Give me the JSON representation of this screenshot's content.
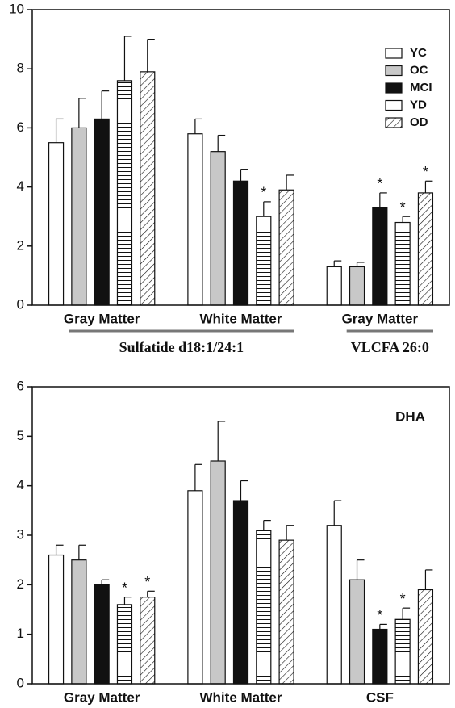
{
  "chart_data": [
    {
      "type": "bar",
      "categories": [
        "Gray Matter",
        "White Matter",
        "Gray Matter"
      ],
      "category_groups": [
        {
          "label": "Sulfatide d18:1/24:1",
          "count": 2
        },
        {
          "label": "VLCFA 26:0",
          "count": 1
        }
      ],
      "significance_mark": "*",
      "series": [
        {
          "name": "YC",
          "color": "#ffffff",
          "pattern": "none",
          "values": [
            5.5,
            5.8,
            1.3
          ],
          "errors": [
            0.8,
            0.5,
            0.2
          ],
          "significant": [
            false,
            false,
            false
          ]
        },
        {
          "name": "OC",
          "color": "#c8c8c8",
          "pattern": "none",
          "values": [
            6.0,
            5.2,
            1.3
          ],
          "errors": [
            1.0,
            0.55,
            0.15
          ],
          "significant": [
            false,
            false,
            false
          ]
        },
        {
          "name": "MCI",
          "color": "#111111",
          "pattern": "none",
          "values": [
            6.3,
            4.2,
            3.3
          ],
          "errors": [
            0.95,
            0.4,
            0.5
          ],
          "significant": [
            false,
            false,
            true
          ]
        },
        {
          "name": "YD",
          "color": "#ffffff",
          "pattern": "horizontal",
          "values": [
            7.6,
            3.0,
            2.8
          ],
          "errors": [
            1.5,
            0.5,
            0.2
          ],
          "significant": [
            false,
            true,
            true
          ]
        },
        {
          "name": "OD",
          "color": "#ffffff",
          "pattern": "diagonal",
          "values": [
            7.9,
            3.9,
            3.8
          ],
          "errors": [
            1.1,
            0.5,
            0.4
          ],
          "significant": [
            false,
            false,
            true
          ]
        }
      ],
      "ylim": [
        0,
        10
      ],
      "yticks": [
        0,
        2,
        4,
        6,
        8,
        10
      ],
      "legend": "upper right"
    },
    {
      "type": "bar",
      "annotation": "DHA",
      "categories": [
        "Gray Matter",
        "White Matter",
        "CSF"
      ],
      "significance_mark": "*",
      "series": [
        {
          "color": "#ffffff",
          "pattern": "none",
          "values": [
            2.6,
            3.9,
            3.2
          ],
          "errors": [
            0.2,
            0.53,
            0.5
          ],
          "significant": [
            false,
            false,
            false
          ]
        },
        {
          "color": "#c8c8c8",
          "pattern": "none",
          "values": [
            2.5,
            4.5,
            2.1
          ],
          "errors": [
            0.3,
            0.8,
            0.4
          ],
          "significant": [
            false,
            false,
            false
          ]
        },
        {
          "color": "#111111",
          "pattern": "none",
          "values": [
            2.0,
            3.7,
            1.1
          ],
          "errors": [
            0.1,
            0.4,
            0.1
          ],
          "significant": [
            false,
            false,
            true
          ]
        },
        {
          "color": "#ffffff",
          "pattern": "horizontal",
          "values": [
            1.6,
            3.1,
            1.3
          ],
          "errors": [
            0.15,
            0.2,
            0.23
          ],
          "significant": [
            true,
            false,
            true
          ]
        },
        {
          "color": "#ffffff",
          "pattern": "diagonal",
          "values": [
            1.75,
            2.9,
            1.9
          ],
          "errors": [
            0.12,
            0.3,
            0.4
          ],
          "significant": [
            true,
            false,
            false
          ]
        }
      ],
      "ylim": [
        0,
        6
      ],
      "yticks": [
        0,
        1,
        2,
        3,
        4,
        5,
        6
      ]
    }
  ]
}
